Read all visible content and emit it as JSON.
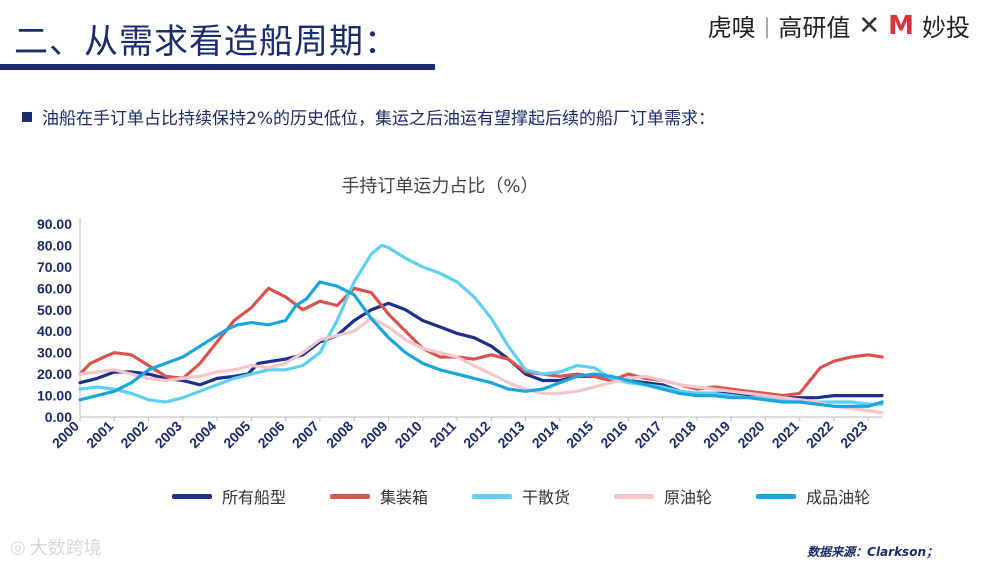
{
  "slide": {
    "title": "二、从需求看造船周期：",
    "brand": {
      "left": "虎嗅",
      "mid": "高研值",
      "x": "✕",
      "right_logo": "M",
      "right": "妙投"
    },
    "bullet": "油船在手订单占比持续保持2%的历史低位，集运之后油运有望撑起后续的船厂订单需求：",
    "watermark": "大数跨境",
    "source": "数据来源：Clarkson；"
  },
  "colors": {
    "title": "#1a2b6e",
    "all_ships": "#1e2f8c",
    "container": "#d9534f",
    "dry_bulk": "#5fd0f0",
    "crude": "#f5c6cc",
    "product": "#1aa6dc"
  },
  "chart_data": {
    "type": "line",
    "title": "手持订单运力占比（%）",
    "ylim": [
      0,
      90
    ],
    "yticks": [
      "0.00",
      "10.00",
      "20.00",
      "30.00",
      "40.00",
      "50.00",
      "60.00",
      "70.00",
      "80.00",
      "90.00"
    ],
    "xlim": [
      2000,
      2023.4
    ],
    "xticks": [
      "2000",
      "2001",
      "2002",
      "2003",
      "2004",
      "2005",
      "2006",
      "2007",
      "2008",
      "2009",
      "2010",
      "2011",
      "2012",
      "2013",
      "2014",
      "2015",
      "2016",
      "2017",
      "2018",
      "2019",
      "2020",
      "2021",
      "2022",
      "2023"
    ],
    "grid": false,
    "series": [
      {
        "name": "所有船型",
        "color": "#1e2f8c",
        "x": [
          2000,
          2000.5,
          2001,
          2001.5,
          2002,
          2002.5,
          2003,
          2003.5,
          2004,
          2004.5,
          2004.9,
          2005.2,
          2005.6,
          2006,
          2006.5,
          2007,
          2007.5,
          2008,
          2008.5,
          2009,
          2009.5,
          2010,
          2010.5,
          2011,
          2011.5,
          2012,
          2012.5,
          2013,
          2013.5,
          2014,
          2014.5,
          2015,
          2015.5,
          2016,
          2016.5,
          2017,
          2017.5,
          2018,
          2018.5,
          2019,
          2019.5,
          2020,
          2020.5,
          2021,
          2021.5,
          2022,
          2022.5,
          2023,
          2023.4
        ],
        "values": [
          16,
          18,
          21,
          21,
          20,
          18,
          17,
          15,
          18,
          19,
          20,
          25,
          26,
          27,
          29,
          35,
          38,
          45,
          50,
          53,
          50,
          45,
          42,
          39,
          37,
          33,
          27,
          20,
          17,
          17,
          19,
          19,
          17,
          17,
          16,
          15,
          12,
          11,
          11,
          11,
          10,
          9,
          9,
          9,
          9,
          10,
          10,
          10,
          10
        ]
      },
      {
        "name": "集装箱",
        "color": "#d9534f",
        "x": [
          2000,
          2000.3,
          2000.7,
          2001,
          2001.5,
          2002,
          2002.5,
          2003,
          2003.5,
          2004,
          2004.5,
          2005,
          2005.5,
          2006,
          2006.5,
          2007,
          2007.5,
          2008,
          2008.5,
          2009,
          2009.5,
          2010,
          2010.5,
          2011,
          2011.5,
          2012,
          2012.5,
          2013,
          2013.5,
          2014,
          2014.5,
          2015,
          2015.5,
          2016,
          2016.5,
          2017,
          2017.5,
          2018,
          2018.5,
          2019,
          2019.5,
          2020,
          2020.5,
          2021,
          2021.3,
          2021.6,
          2022,
          2022.5,
          2023,
          2023.4
        ],
        "values": [
          20,
          25,
          28,
          30,
          29,
          24,
          19,
          18,
          25,
          35,
          45,
          51,
          60,
          56,
          50,
          54,
          52,
          60,
          58,
          48,
          40,
          32,
          28,
          28,
          27,
          29,
          27,
          21,
          20,
          19,
          20,
          19,
          17,
          20,
          18,
          17,
          15,
          13,
          14,
          13,
          12,
          11,
          10,
          11,
          17,
          23,
          26,
          28,
          29,
          28
        ]
      },
      {
        "name": "干散货",
        "color": "#5fd0f0",
        "x": [
          2000,
          2000.5,
          2001,
          2001.5,
          2002,
          2002.5,
          2003,
          2003.5,
          2004,
          2004.5,
          2005,
          2005.5,
          2006,
          2006.5,
          2007,
          2007.5,
          2008,
          2008.5,
          2008.8,
          2009,
          2009.5,
          2010,
          2010.5,
          2011,
          2011.5,
          2012,
          2012.5,
          2013,
          2013.5,
          2014,
          2014.5,
          2015,
          2015.5,
          2016,
          2016.5,
          2017,
          2017.5,
          2018,
          2018.5,
          2019,
          2019.5,
          2020,
          2020.5,
          2021,
          2021.5,
          2022,
          2022.5,
          2023,
          2023.4
        ],
        "values": [
          13,
          14,
          13,
          11,
          8,
          7,
          9,
          12,
          15,
          18,
          20,
          22,
          22,
          24,
          30,
          45,
          63,
          76,
          80,
          79,
          74,
          70,
          67,
          63,
          56,
          46,
          33,
          22,
          20,
          21,
          24,
          23,
          18,
          16,
          15,
          14,
          12,
          11,
          11,
          10,
          9,
          9,
          8,
          8,
          7,
          7,
          7,
          6,
          6
        ]
      },
      {
        "name": "原油轮",
        "color": "#f5c6cc",
        "x": [
          2000,
          2000.5,
          2001,
          2001.5,
          2002,
          2002.5,
          2003,
          2003.5,
          2004,
          2004.5,
          2005,
          2005.5,
          2006,
          2006.5,
          2007,
          2007.5,
          2008,
          2008.5,
          2009,
          2009.5,
          2010,
          2010.5,
          2011,
          2011.5,
          2012,
          2012.5,
          2013,
          2013.5,
          2014,
          2014.5,
          2015,
          2015.5,
          2016,
          2016.5,
          2017,
          2017.5,
          2018,
          2018.5,
          2019,
          2019.5,
          2020,
          2020.5,
          2021,
          2021.5,
          2022,
          2022.5,
          2023,
          2023.4
        ],
        "values": [
          20,
          21,
          22,
          20,
          18,
          17,
          18,
          19,
          21,
          22,
          24,
          23,
          25,
          30,
          36,
          38,
          40,
          46,
          42,
          36,
          32,
          30,
          28,
          24,
          20,
          16,
          13,
          11,
          11,
          12,
          14,
          16,
          18,
          19,
          17,
          15,
          14,
          13,
          12,
          11,
          10,
          9,
          8,
          7,
          5,
          4,
          3,
          2
        ]
      },
      {
        "name": "成品油轮",
        "color": "#1aa6dc",
        "x": [
          2000,
          2000.5,
          2001,
          2001.5,
          2002,
          2002.5,
          2003,
          2003.5,
          2004,
          2004.3,
          2004.6,
          2005,
          2005.5,
          2006,
          2006.3,
          2006.6,
          2007,
          2007.5,
          2008,
          2008.5,
          2009,
          2009.5,
          2010,
          2010.5,
          2011,
          2011.5,
          2012,
          2012.5,
          2013,
          2013.5,
          2014,
          2014.5,
          2015,
          2015.5,
          2016,
          2016.5,
          2017,
          2017.5,
          2018,
          2018.5,
          2019,
          2019.5,
          2020,
          2020.5,
          2021,
          2021.5,
          2022,
          2022.5,
          2023,
          2023.4
        ],
        "values": [
          8,
          10,
          12,
          16,
          22,
          25,
          28,
          33,
          38,
          41,
          43,
          44,
          43,
          45,
          52,
          55,
          63,
          61,
          57,
          46,
          37,
          30,
          25,
          22,
          20,
          18,
          16,
          13,
          12,
          13,
          16,
          19,
          20,
          19,
          17,
          15,
          13,
          11,
          10,
          10,
          9,
          9,
          8,
          7,
          7,
          6,
          5,
          5,
          5,
          7
        ]
      }
    ]
  }
}
